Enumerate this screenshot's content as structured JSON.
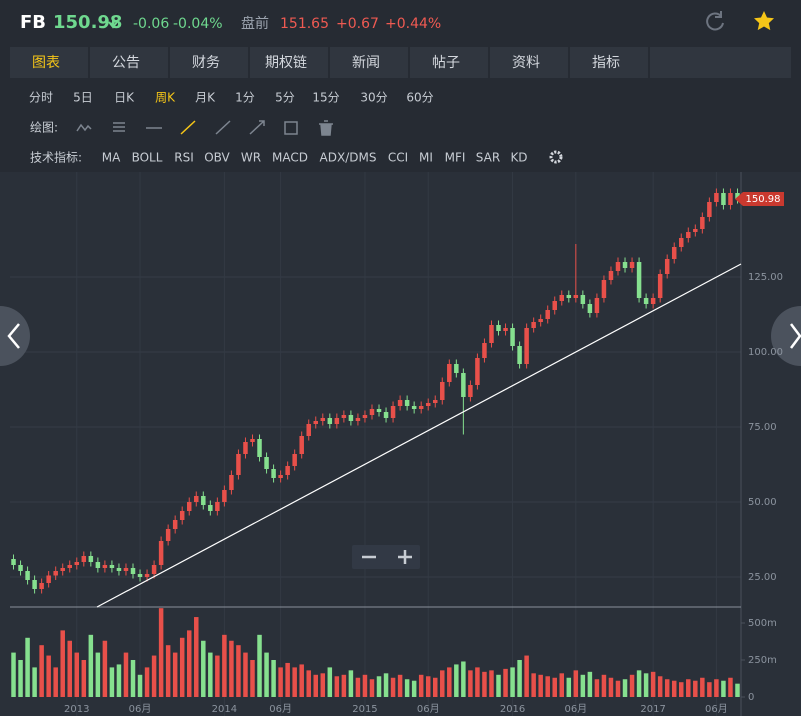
{
  "header": {
    "symbol": "FB",
    "price": "150.98",
    "change": "-0.06",
    "change_pct": "-0.04%",
    "premarket_label": "盘前",
    "premarket_price": "151.65",
    "premarket_change": "+0.67",
    "premarket_pct": "+0.44%"
  },
  "tabs": [
    "图表",
    "公告",
    "财务",
    "期权链",
    "新闻",
    "帖子",
    "资料",
    "指标"
  ],
  "periods": [
    "分时",
    "5日",
    "日K",
    "周K",
    "月K",
    "1分",
    "5分",
    "15分",
    "30分",
    "60分"
  ],
  "drawing_label": "绘图:",
  "indicator_label": "技术指标:",
  "indicators": [
    "MA",
    "BOLL",
    "RSI",
    "OBV",
    "WR",
    "MACD",
    "ADX/DMS",
    "CCI",
    "MI",
    "MFI",
    "SAR",
    "KD"
  ],
  "chart_data": {
    "type": "candlestick",
    "categories": [
      null,
      null,
      null,
      null,
      null,
      null,
      null,
      null,
      null,
      "2013",
      null,
      null,
      null,
      null,
      null,
      null,
      null,
      null,
      "06月",
      null,
      null,
      null,
      null,
      null,
      null,
      null,
      null,
      null,
      null,
      null,
      "2014",
      null,
      null,
      null,
      null,
      null,
      null,
      null,
      "06月",
      null,
      null,
      null,
      null,
      null,
      null,
      null,
      null,
      null,
      null,
      null,
      "2015",
      null,
      null,
      null,
      null,
      null,
      null,
      null,
      null,
      "06月",
      null,
      null,
      null,
      null,
      null,
      null,
      null,
      null,
      null,
      null,
      null,
      "2016",
      null,
      null,
      null,
      null,
      null,
      null,
      null,
      null,
      "06月",
      null,
      null,
      null,
      null,
      null,
      null,
      null,
      null,
      null,
      null,
      "2017",
      null,
      null,
      null,
      null,
      null,
      null,
      null,
      null,
      "06月",
      null,
      null,
      null
    ],
    "open": [
      31,
      29,
      27,
      24,
      21,
      23,
      25.5,
      27,
      28,
      29,
      30,
      32,
      30,
      28,
      29,
      28,
      27,
      28,
      26,
      25,
      26,
      29,
      37,
      41,
      44,
      47,
      50,
      52,
      49,
      47,
      50,
      54,
      59,
      66,
      70,
      71,
      65,
      61,
      58,
      59,
      62,
      66,
      72,
      76,
      77,
      78,
      76,
      78,
      79,
      77,
      78,
      79,
      81,
      80,
      78,
      82,
      84,
      82,
      81,
      82,
      83,
      84,
      90,
      96,
      93,
      85,
      89,
      98,
      103,
      109,
      107,
      108,
      102,
      96,
      108,
      110,
      111,
      114,
      117,
      119,
      118,
      119,
      116,
      113,
      118,
      124,
      127,
      130,
      128,
      130,
      118,
      116,
      118,
      126,
      131,
      135,
      138,
      140,
      141,
      145,
      150,
      153,
      149,
      153
    ],
    "high": [
      32.5,
      30.5,
      28.5,
      25.5,
      24.5,
      27,
      28.5,
      29.5,
      30.5,
      31.5,
      33.5,
      33.5,
      31.5,
      30.5,
      30.5,
      29.5,
      29.5,
      29.5,
      27.5,
      27.5,
      30.5,
      38.5,
      42.5,
      45.5,
      48.5,
      51.5,
      53.5,
      53.5,
      50.5,
      51.5,
      55.5,
      60.5,
      67.5,
      71.5,
      72.5,
      72.5,
      66.5,
      62.5,
      60.5,
      63.5,
      67.5,
      73.5,
      77.5,
      78.5,
      79.5,
      79.5,
      79.5,
      80.5,
      80.5,
      79.5,
      80.5,
      82.5,
      82.5,
      81.5,
      83.5,
      85.5,
      85.5,
      83.5,
      83.5,
      84.5,
      85.5,
      91.5,
      97.5,
      97.5,
      94.5,
      90.5,
      99.5,
      104.5,
      110.5,
      110.5,
      109.5,
      109.5,
      103.5,
      109.5,
      111.5,
      112.5,
      115.5,
      118.5,
      120.5,
      120.5,
      136,
      120.5,
      117.5,
      119.5,
      125.5,
      128.5,
      131.5,
      131.5,
      131.5,
      131.5,
      119.5,
      119.5,
      127.5,
      132.5,
      136.5,
      139.5,
      141.5,
      142.5,
      146.5,
      151.5,
      154.5,
      154.5,
      154.5,
      154.5
    ],
    "low": [
      27.5,
      25.5,
      22.5,
      19.5,
      19.5,
      21.5,
      24,
      25.5,
      26.5,
      27.5,
      28.5,
      28.5,
      26.5,
      26.5,
      26.5,
      25.5,
      25.5,
      24.5,
      23.5,
      23.5,
      24.5,
      27.5,
      35.5,
      39.5,
      42.5,
      45.5,
      48.5,
      47.5,
      45.5,
      45.5,
      48.5,
      52.5,
      57.5,
      64.5,
      68.5,
      63.5,
      59.5,
      56.5,
      56.5,
      57.5,
      60.5,
      64.5,
      70.5,
      74.5,
      75.5,
      74.5,
      74.5,
      76.5,
      75.5,
      75.5,
      76.5,
      77.5,
      78.5,
      76.5,
      76.5,
      80.5,
      80.5,
      79.5,
      79.5,
      80.5,
      81.5,
      82.5,
      88.5,
      91.5,
      72.5,
      83.5,
      87.5,
      96.5,
      101.5,
      105.5,
      105.5,
      100.5,
      94.5,
      94.5,
      106.5,
      108.5,
      109.5,
      112.5,
      115.5,
      116.5,
      116.5,
      114.5,
      111.5,
      111.5,
      116.5,
      122.5,
      125.5,
      126.5,
      126.5,
      116.5,
      114.5,
      114.5,
      116.5,
      124.5,
      129.5,
      133.5,
      136.5,
      138.5,
      139.5,
      143.5,
      148.5,
      147.5,
      147.5,
      149.48
    ],
    "close": [
      29,
      27,
      24,
      21,
      23,
      25.5,
      27,
      28,
      29,
      30,
      32,
      30,
      28,
      29,
      28,
      27,
      28,
      26,
      25,
      26,
      29,
      37,
      41,
      44,
      47,
      50,
      52,
      49,
      47,
      50,
      54,
      59,
      66,
      70,
      71,
      65,
      61,
      58,
      59,
      62,
      66,
      72,
      76,
      77,
      78,
      76,
      78,
      79,
      77,
      78,
      79,
      81,
      80,
      78,
      82,
      84,
      82,
      81,
      82,
      83,
      84,
      90,
      96,
      93,
      85,
      89,
      98,
      103,
      109,
      107,
      108,
      102,
      96,
      108,
      110,
      111,
      114,
      117,
      119,
      118,
      119,
      116,
      113,
      118,
      124,
      127,
      130,
      128,
      130,
      118,
      116,
      118,
      126,
      131,
      135,
      138,
      140,
      141,
      145,
      150,
      153,
      149,
      153,
      150.98
    ],
    "up_color": "#e8504a",
    "down_color": "#86e08f",
    "ylim": [
      15,
      160
    ],
    "yticks": [
      {
        "value": 25,
        "label": "25.00"
      },
      {
        "value": 50,
        "label": "50.00"
      },
      {
        "value": 75,
        "label": "75.00"
      },
      {
        "value": 100,
        "label": "100.00"
      },
      {
        "value": 125,
        "label": "125.00"
      }
    ],
    "volume": {
      "values": [
        300,
        250,
        400,
        200,
        350,
        280,
        200,
        450,
        380,
        300,
        250,
        420,
        300,
        380,
        200,
        220,
        300,
        250,
        150,
        200,
        280,
        600,
        350,
        300,
        400,
        450,
        540,
        380,
        300,
        280,
        420,
        380,
        350,
        300,
        250,
        420,
        300,
        250,
        200,
        230,
        200,
        220,
        180,
        150,
        160,
        200,
        140,
        150,
        180,
        130,
        150,
        120,
        140,
        160,
        130,
        150,
        120,
        110,
        150,
        140,
        130,
        180,
        200,
        220,
        240,
        180,
        200,
        170,
        180,
        150,
        190,
        200,
        250,
        280,
        160,
        150,
        140,
        130,
        160,
        130,
        180,
        150,
        170,
        120,
        150,
        130,
        110,
        120,
        150,
        180,
        160,
        170,
        140,
        120,
        110,
        100,
        120,
        110,
        130,
        100,
        120,
        110,
        130,
        90
      ],
      "ylim": [
        0,
        608
      ],
      "yticks": [
        0,
        {
          "value": 250,
          "label": "250m"
        },
        {
          "value": 500,
          "label": "500m"
        }
      ]
    }
  }
}
